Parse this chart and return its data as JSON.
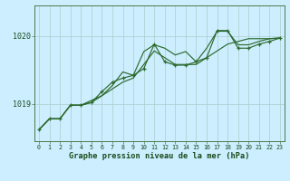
{
  "bg_color": "#cceeff",
  "grid_color": "#aacccc",
  "line_color": "#2d6a2d",
  "text_color": "#1a4a1a",
  "title": "Graphe pression niveau de la mer (hPa)",
  "xlabel_ticks": [
    0,
    1,
    2,
    3,
    4,
    5,
    6,
    7,
    8,
    9,
    10,
    11,
    12,
    13,
    14,
    15,
    16,
    17,
    18,
    19,
    20,
    21,
    22,
    23
  ],
  "yticks": [
    1019,
    1020
  ],
  "ylim": [
    1018.45,
    1020.45
  ],
  "xlim": [
    -0.4,
    23.4
  ],
  "series_marked": [
    1018.62,
    1018.78,
    1018.78,
    1018.98,
    1018.98,
    1019.02,
    1019.18,
    1019.32,
    1019.38,
    1019.42,
    1019.52,
    1019.88,
    1019.62,
    1019.57,
    1019.57,
    1019.62,
    1019.68,
    1020.08,
    1020.08,
    1019.82,
    1019.82,
    1019.88,
    1019.92,
    1019.97
  ],
  "series_smooth1": [
    1018.62,
    1018.78,
    1018.78,
    1018.98,
    1018.98,
    1019.02,
    1019.12,
    1019.22,
    1019.32,
    1019.38,
    1019.58,
    1019.78,
    1019.68,
    1019.58,
    1019.58,
    1019.58,
    1019.68,
    1019.78,
    1019.88,
    1019.92,
    1019.96,
    1019.96,
    1019.96,
    1019.97
  ],
  "series_smooth2": [
    1018.62,
    1018.78,
    1018.78,
    1018.98,
    1018.98,
    1019.05,
    1019.12,
    1019.27,
    1019.47,
    1019.42,
    1019.77,
    1019.87,
    1019.82,
    1019.72,
    1019.77,
    1019.62,
    1019.82,
    1020.07,
    1020.07,
    1019.87,
    1019.87,
    1019.92,
    1019.96,
    1019.97
  ]
}
